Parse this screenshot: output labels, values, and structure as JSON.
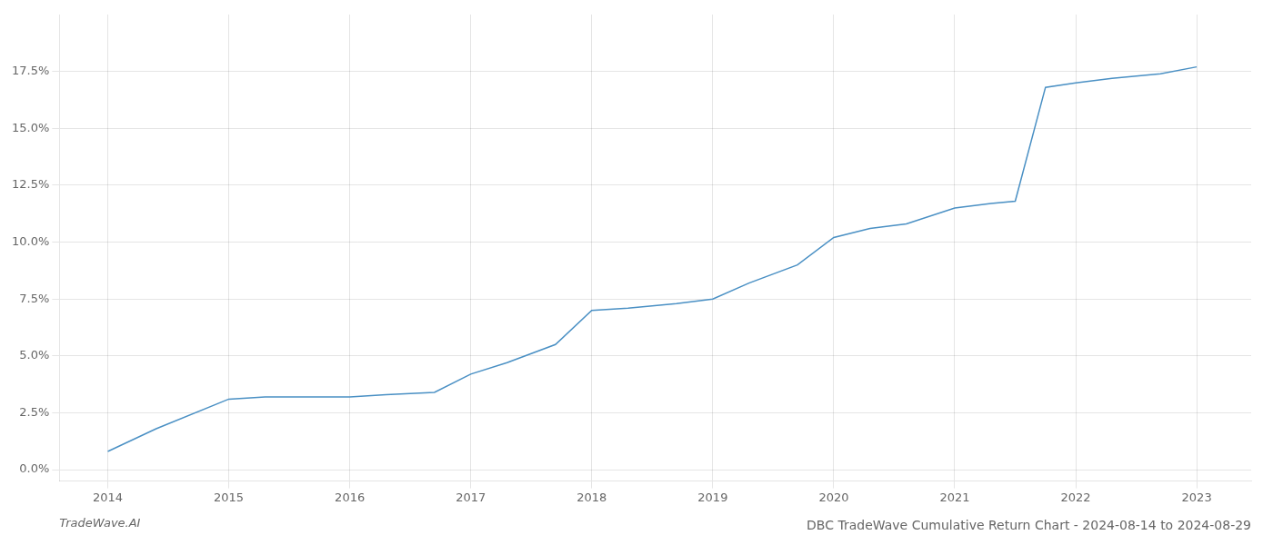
{
  "chart_data": {
    "type": "line",
    "title": "DBC TradeWave Cumulative Return Chart - 2024-08-14 to 2024-08-29",
    "annotations": [
      "TradeWave.AI"
    ],
    "x": [
      2014.0,
      2014.4,
      2015.0,
      2015.3,
      2016.0,
      2016.3,
      2016.7,
      2017.0,
      2017.3,
      2017.7,
      2018.0,
      2018.3,
      2018.7,
      2019.0,
      2019.3,
      2019.7,
      2020.0,
      2020.3,
      2020.6,
      2021.0,
      2021.3,
      2021.5,
      2021.75,
      2022.0,
      2022.3,
      2022.7,
      2023.0
    ],
    "values": [
      0.008,
      0.018,
      0.031,
      0.032,
      0.032,
      0.033,
      0.034,
      0.042,
      0.047,
      0.055,
      0.07,
      0.071,
      0.073,
      0.075,
      0.082,
      0.09,
      0.102,
      0.106,
      0.108,
      0.115,
      0.117,
      0.118,
      0.168,
      0.17,
      0.172,
      0.174,
      0.177
    ],
    "color": "#4a90c4",
    "xlim": [
      2013.6,
      2023.45
    ],
    "xticks": [
      2014,
      2015,
      2016,
      2017,
      2018,
      2019,
      2020,
      2021,
      2022,
      2023
    ],
    "ylim": [
      -0.005,
      0.2
    ],
    "yticks": [
      {
        "value": 0.0,
        "label": "0.0%"
      },
      {
        "value": 0.025,
        "label": "2.5%"
      },
      {
        "value": 0.05,
        "label": "5.0%"
      },
      {
        "value": 0.075,
        "label": "7.5%"
      },
      {
        "value": 0.1,
        "label": "10.0%"
      },
      {
        "value": 0.125,
        "label": "12.5%"
      },
      {
        "value": 0.15,
        "label": "15.0%"
      },
      {
        "value": 0.175,
        "label": "17.5%"
      }
    ],
    "grid": true
  }
}
